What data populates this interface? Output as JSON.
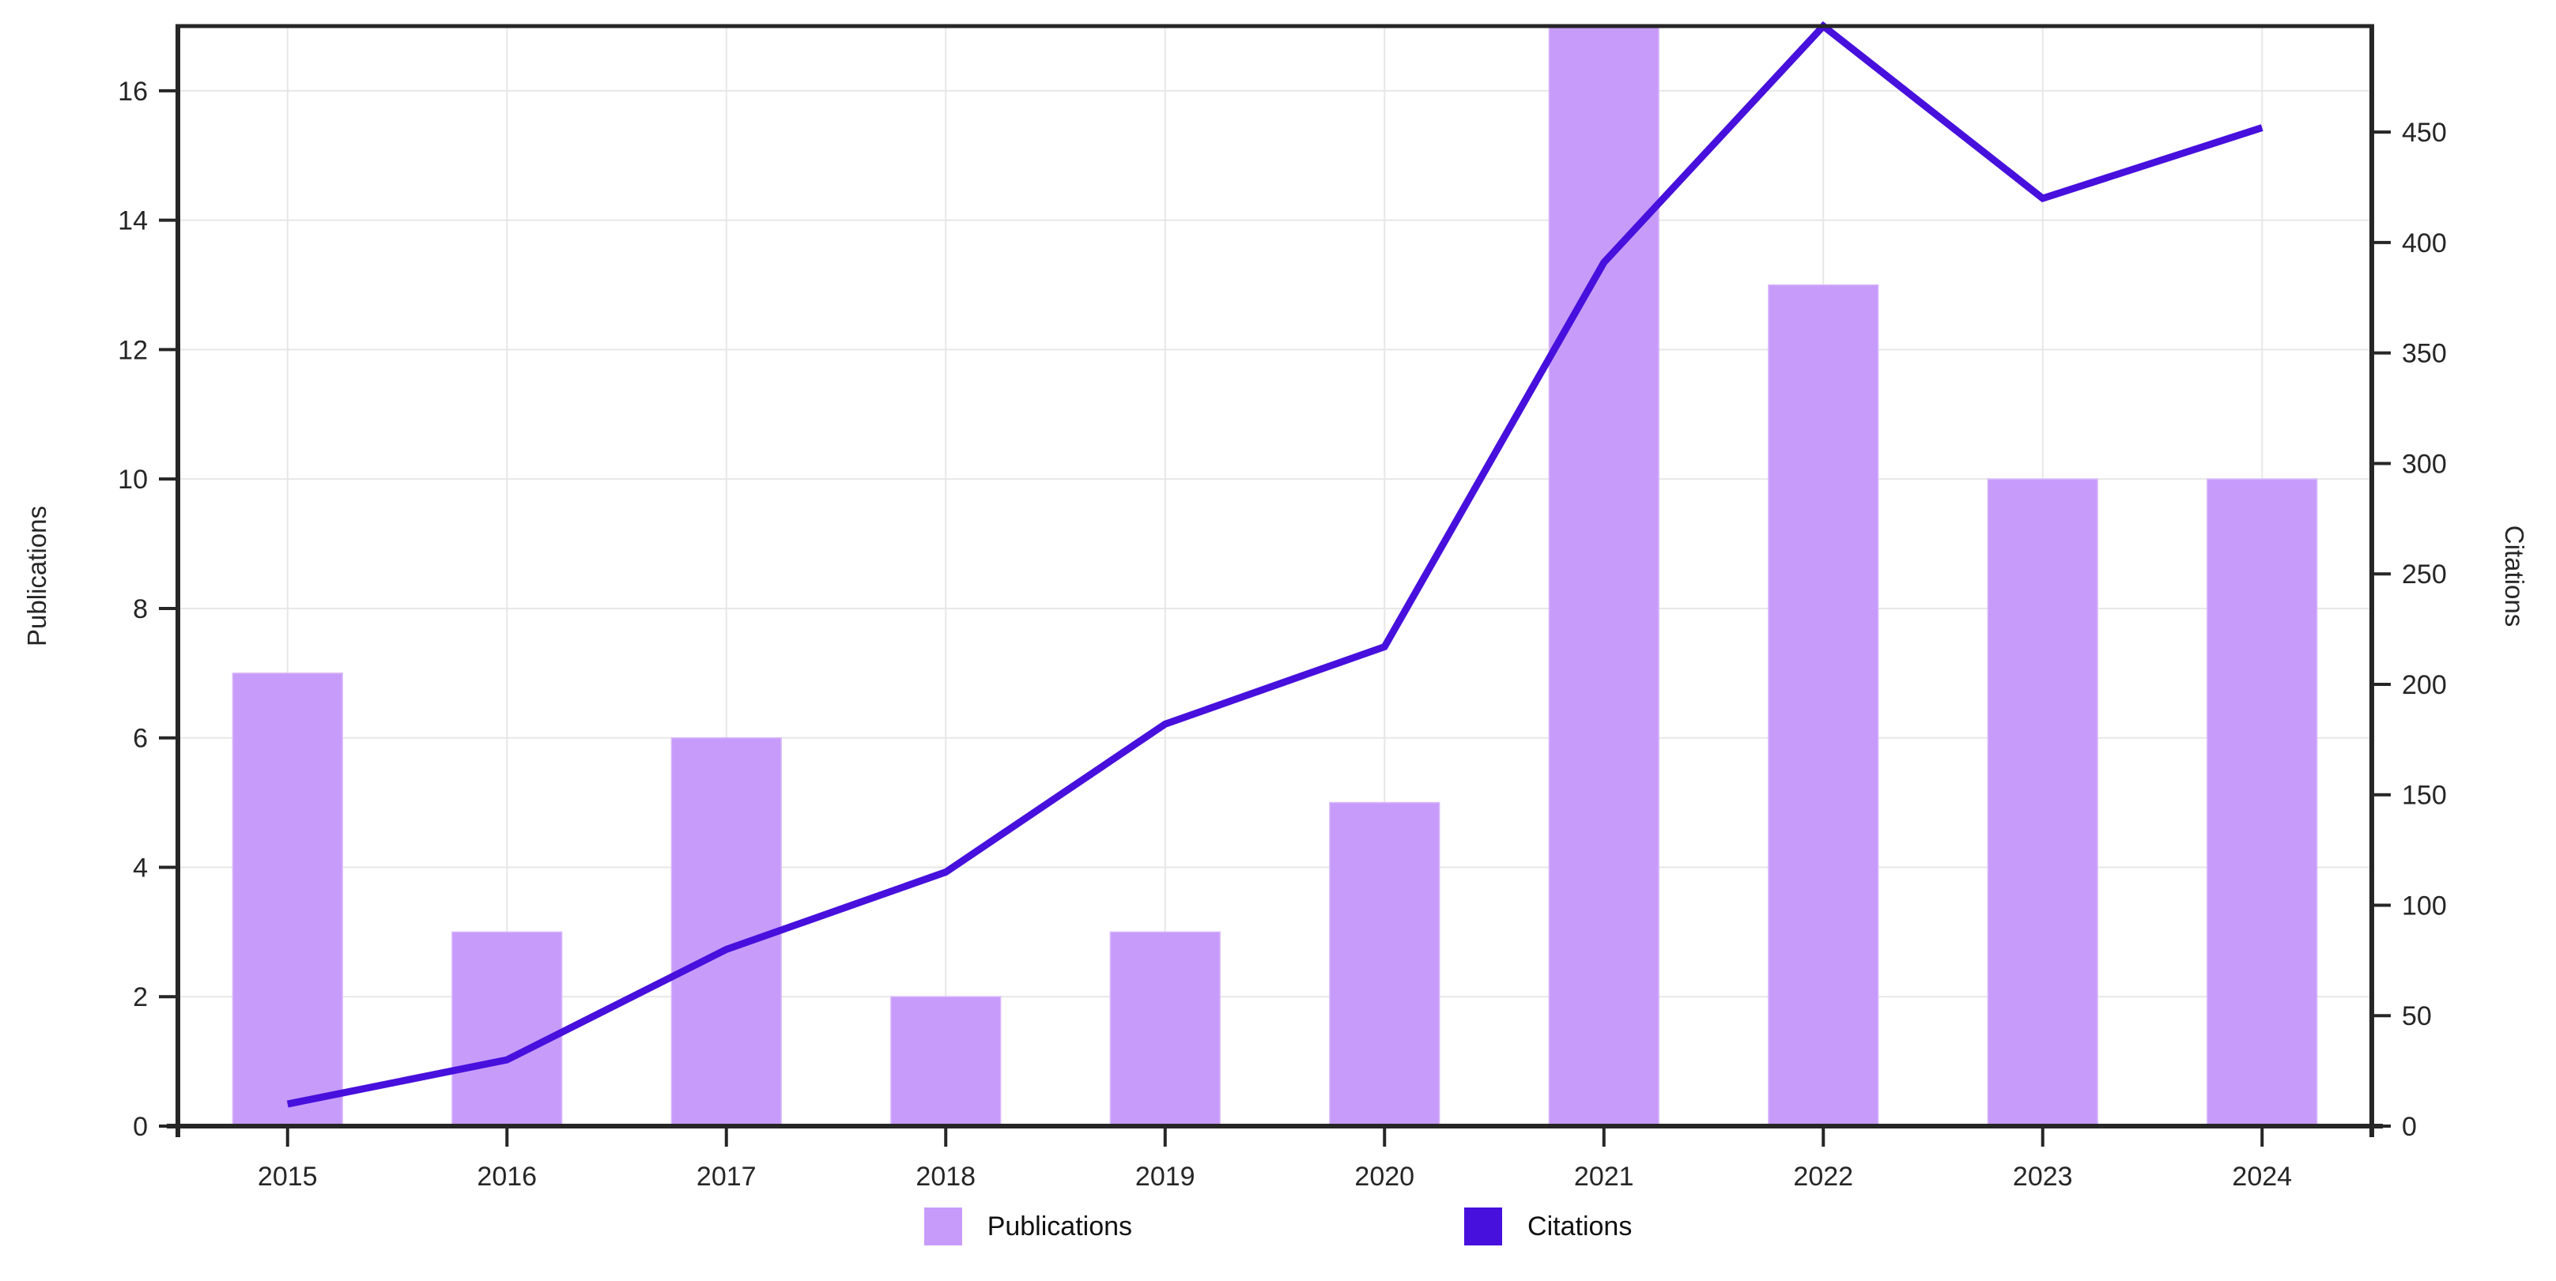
{
  "chart_data": {
    "type": "bar+line dual-axis combo",
    "categories": [
      "2015",
      "2016",
      "2017",
      "2018",
      "2019",
      "2020",
      "2021",
      "2022",
      "2023",
      "2024"
    ],
    "series": [
      {
        "name": "Publications",
        "type": "bar",
        "axis": "left",
        "color": "#c79bfa",
        "values": [
          7,
          3,
          6,
          2,
          3,
          5,
          17,
          13,
          10,
          10
        ]
      },
      {
        "name": "Citations",
        "type": "line",
        "axis": "right",
        "color": "#4710dd",
        "values": [
          10,
          30,
          80,
          115,
          182,
          217,
          391,
          498,
          420,
          452
        ]
      }
    ],
    "left_axis": {
      "label": "Publications",
      "min": 0,
      "max": 17,
      "ticks": [
        0,
        2,
        4,
        6,
        8,
        10,
        12,
        14,
        16
      ]
    },
    "right_axis": {
      "label": "Citations",
      "min": 0,
      "max": 498,
      "ticks": [
        0,
        50,
        100,
        150,
        200,
        250,
        300,
        350,
        400,
        450
      ]
    },
    "x_axis": {
      "ticks": [
        "2015",
        "2016",
        "2017",
        "2018",
        "2019",
        "2020",
        "2021",
        "2022",
        "2023",
        "2024"
      ]
    },
    "legend": {
      "position": "bottom",
      "entries": [
        {
          "label": "Publications",
          "color": "#c79bfa"
        },
        {
          "label": "Citations",
          "color": "#4710dd"
        }
      ]
    },
    "grid": "on",
    "styles": {
      "grid_color": "#e7e7e7",
      "spine_color": "#262626",
      "tick_text_color": "#262626",
      "background": "#ffffff",
      "line_width": 9,
      "bar_edge_color": "#d9b8fb"
    }
  }
}
